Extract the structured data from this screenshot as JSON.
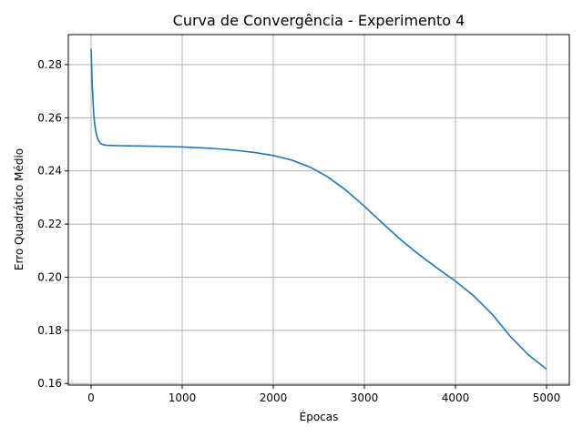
{
  "chart_data": {
    "type": "line",
    "title": "Curva de Convergência - Experimento 4",
    "xlabel": "Épocas",
    "ylabel": "Erro Quadrático Médio",
    "xlim": [
      -250,
      5250
    ],
    "ylim": [
      0.1594,
      0.2913
    ],
    "xticks": [
      0,
      1000,
      2000,
      3000,
      4000,
      5000
    ],
    "xtick_labels": [
      "0",
      "1000",
      "2000",
      "3000",
      "4000",
      "5000"
    ],
    "yticks": [
      0.16,
      0.18,
      0.2,
      0.22,
      0.24,
      0.26,
      0.28
    ],
    "ytick_labels": [
      "0.16",
      "0.18",
      "0.20",
      "0.22",
      "0.24",
      "0.26",
      "0.28"
    ],
    "grid": true,
    "legend": "none",
    "series": [
      {
        "color": "#1f77b4",
        "x": [
          0,
          10,
          20,
          30,
          40,
          50,
          60,
          80,
          100,
          130,
          160,
          200,
          300,
          500,
          800,
          1000,
          1200,
          1400,
          1600,
          1800,
          2000,
          2200,
          2400,
          2600,
          2800,
          3000,
          3200,
          3400,
          3600,
          3800,
          4000,
          4200,
          4400,
          4600,
          4800,
          5000
        ],
        "y": [
          0.286,
          0.275,
          0.267,
          0.261,
          0.2575,
          0.2552,
          0.2535,
          0.2515,
          0.2504,
          0.2499,
          0.2497,
          0.2496,
          0.2495,
          0.2494,
          0.2492,
          0.249,
          0.2487,
          0.2483,
          0.2477,
          0.2469,
          0.2458,
          0.2441,
          0.2415,
          0.2377,
          0.2327,
          0.2267,
          0.2203,
          0.2141,
          0.2085,
          0.2034,
          0.1985,
          0.193,
          0.1862,
          0.1778,
          0.1708,
          0.1654
        ]
      }
    ]
  }
}
